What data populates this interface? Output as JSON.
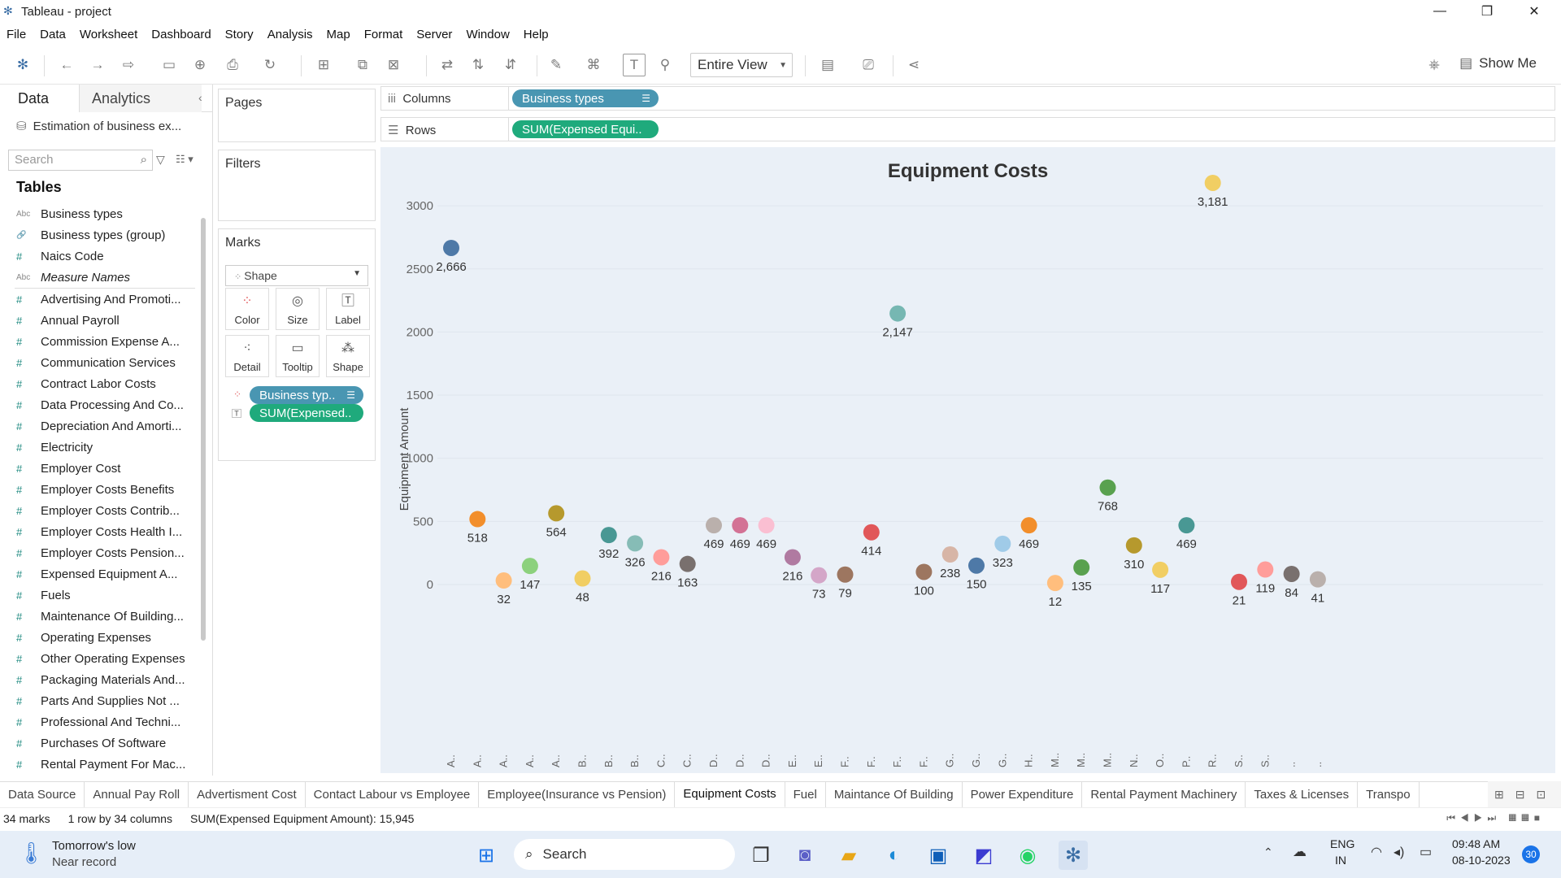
{
  "window": {
    "title": "Tableau - project",
    "minimize": "—",
    "restore": "❐",
    "close": "✕"
  },
  "menu": [
    "File",
    "Data",
    "Worksheet",
    "Dashboard",
    "Story",
    "Analysis",
    "Map",
    "Format",
    "Server",
    "Window",
    "Help"
  ],
  "toolbar": {
    "view_mode": "Entire View",
    "show_me": "Show Me"
  },
  "datapane": {
    "tab_data": "Data",
    "tab_analytics": "Analytics",
    "datasource": "Estimation of business ex...",
    "search_placeholder": "Search",
    "tables_heading": "Tables",
    "dimensions": [
      {
        "type": "Abc",
        "name": "Business types",
        "italic": false
      },
      {
        "type": "🔗",
        "name": "Business types (group)",
        "italic": false
      },
      {
        "type": "#",
        "name": "Naics Code",
        "italic": false
      },
      {
        "type": "Abc",
        "name": "Measure Names",
        "italic": true
      }
    ],
    "measures": [
      "Advertising And Promoti...",
      "Annual Payroll",
      "Commission Expense A...",
      "Communication Services",
      "Contract Labor Costs",
      "Data Processing And Co...",
      "Depreciation And Amorti...",
      "Electricity",
      "Employer Cost",
      "Employer Costs Benefits",
      "Employer Costs Contrib...",
      "Employer Costs Health I...",
      "Employer Costs Pension...",
      "Expensed Equipment A...",
      "Fuels",
      "Maintenance Of Building...",
      "Operating Expenses",
      "Other Operating Expenses",
      "Packaging Materials And...",
      "Parts And Supplies Not ...",
      "Professional And Techni...",
      "Purchases Of Software",
      "Rental Payment For Mac..."
    ]
  },
  "shelves": {
    "pages": "Pages",
    "filters": "Filters",
    "marks": "Marks",
    "mark_type": "Shape",
    "mark_buttons": [
      "Color",
      "Size",
      "Label",
      "Detail",
      "Tooltip",
      "Shape"
    ],
    "mark_pills": [
      "Business typ..",
      "SUM(Expensed.."
    ],
    "columns_label": "Columns",
    "rows_label": "Rows",
    "columns_pill": "Business types",
    "rows_pill": "SUM(Expensed Equi.."
  },
  "chart_data": {
    "type": "scatter",
    "title": "Equipment Costs",
    "ylabel": "Equipment Amount",
    "ylim": [
      0,
      3300
    ],
    "yticks": [
      0,
      500,
      1000,
      1500,
      2000,
      2500,
      3000
    ],
    "categories": [
      "A..",
      "A..",
      "A..",
      "A..",
      "A..",
      "B..",
      "B..",
      "B..",
      "C..",
      "C..",
      "D..",
      "D..",
      "D..",
      "E..",
      "E..",
      "F..",
      "F..",
      "F..",
      "F..",
      "G..",
      "G..",
      "G..",
      "H..",
      "M..",
      "M..",
      "M..",
      "N..",
      "O..",
      "P..",
      "R..",
      "S..",
      "S..",
      "..",
      ".."
    ],
    "values": [
      2666,
      518,
      32,
      147,
      564,
      48,
      392,
      326,
      216,
      163,
      469,
      469,
      469,
      216,
      73,
      79,
      414,
      2147,
      100,
      238,
      150,
      323,
      469,
      12,
      135,
      768,
      310,
      117,
      469,
      3181,
      21,
      119,
      84,
      41
    ],
    "point_colors": [
      "#4e79a7",
      "#f28e2b",
      "#ffbe7d",
      "#8cd17d",
      "#b6992d",
      "#f1ce63",
      "#499894",
      "#86bcb6",
      "#ff9d9a",
      "#79706e",
      "#bab0ac",
      "#d37295",
      "#fabfd2",
      "#b07aa1",
      "#d4a6c8",
      "#9d7660",
      "#e15759",
      "#76b7b2",
      "#9d7660",
      "#d7b5a6",
      "#4e79a7",
      "#a0cbe8",
      "#f28e2b",
      "#ffbe7d",
      "#59a14f",
      "#59a14f",
      "#b6992d",
      "#f1ce63",
      "#499894",
      "#f1ce63",
      "#e15759",
      "#ff9d9a",
      "#79706e",
      "#bab0ac"
    ],
    "data_labels": [
      "2,666",
      "518",
      "32",
      "147",
      "564",
      "48",
      "392",
      "326",
      "216",
      "163",
      "469",
      "469",
      "469",
      "216",
      "73",
      "79",
      "414",
      "2,147",
      "100",
      "238",
      "150",
      "323",
      "469",
      "12",
      "135",
      "768",
      "310",
      "117",
      "469",
      "3,181",
      "21",
      "119",
      "84",
      "41"
    ]
  },
  "sheet_tabs": [
    "Data Source",
    "Annual Pay Roll",
    "Advertisment Cost",
    "Contact Labour vs Employee",
    "Employee(Insurance vs Pension)",
    "Equipment Costs",
    "Fuel",
    "Maintance Of Building",
    "Power Expenditure",
    "Rental Payment Machinery",
    "Taxes & Licenses",
    "Transpo"
  ],
  "active_tab": "Equipment Costs",
  "status": {
    "marks": "34 marks",
    "dims": "1 row by 34 columns",
    "sum": "SUM(Expensed Equipment Amount): 15,945"
  },
  "taskbar": {
    "weather_line1": "Tomorrow's low",
    "weather_line2": "Near record",
    "search": "Search",
    "lang1": "ENG",
    "lang2": "IN",
    "time": "09:48 AM",
    "date": "08-10-2023",
    "badge": "30"
  }
}
